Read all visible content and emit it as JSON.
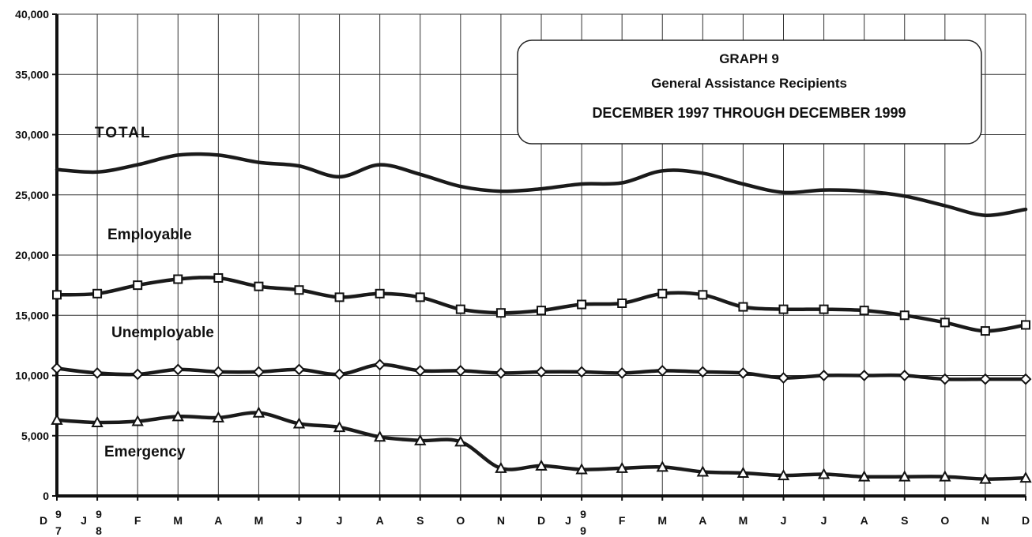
{
  "chart_data": {
    "type": "line",
    "title_lines": [
      "GRAPH 9",
      "General Assistance Recipients",
      "DECEMBER 1997 THROUGH DECEMBER 1999"
    ],
    "xlabel": "",
    "ylabel": "",
    "ylim": [
      0,
      40000
    ],
    "y_ticks": [
      "0",
      "5,000",
      "10,000",
      "15,000",
      "20,000",
      "25,000",
      "30,000",
      "35,000",
      "40,000"
    ],
    "y_tick_values": [
      0,
      5000,
      10000,
      15000,
      20000,
      25000,
      30000,
      35000,
      40000
    ],
    "grid": true,
    "x": [
      "D97",
      "J98",
      "F",
      "M",
      "A",
      "M",
      "J",
      "J",
      "A",
      "S",
      "O",
      "N",
      "D",
      "J99",
      "F",
      "M",
      "A",
      "M",
      "J",
      "J",
      "A",
      "S",
      "O",
      "N",
      "D"
    ],
    "x_tick_labels": [
      {
        "main": "D",
        "year": [
          "9",
          "7"
        ]
      },
      {
        "main": "J",
        "year": [
          "9",
          "8"
        ]
      },
      {
        "main": "F"
      },
      {
        "main": "M"
      },
      {
        "main": "A"
      },
      {
        "main": "M"
      },
      {
        "main": "J"
      },
      {
        "main": "J"
      },
      {
        "main": "A"
      },
      {
        "main": "S"
      },
      {
        "main": "O"
      },
      {
        "main": "N"
      },
      {
        "main": "D"
      },
      {
        "main": "J",
        "year": [
          "9",
          "9"
        ]
      },
      {
        "main": "F"
      },
      {
        "main": "M"
      },
      {
        "main": "A"
      },
      {
        "main": "M"
      },
      {
        "main": "J"
      },
      {
        "main": "J"
      },
      {
        "main": "A"
      },
      {
        "main": "S"
      },
      {
        "main": "O"
      },
      {
        "main": "N"
      },
      {
        "main": "D"
      }
    ],
    "series": [
      {
        "name": "TOTAL",
        "marker": "none",
        "values": [
          27100,
          26900,
          27500,
          28300,
          28300,
          27700,
          27400,
          26500,
          27500,
          26700,
          25700,
          25300,
          25500,
          25900,
          26000,
          27000,
          26800,
          25900,
          25200,
          25400,
          25300,
          24900,
          24100,
          23300,
          23800
        ]
      },
      {
        "name": "Employable",
        "marker": "square",
        "values": [
          16700,
          16800,
          17500,
          18000,
          18100,
          17400,
          17100,
          16500,
          16800,
          16500,
          15500,
          15200,
          15400,
          15900,
          16000,
          16800,
          16700,
          15700,
          15500,
          15500,
          15400,
          15000,
          14400,
          13700,
          14200
        ]
      },
      {
        "name": "Unemployable",
        "marker": "diamond",
        "values": [
          10600,
          10200,
          10100,
          10500,
          10300,
          10300,
          10500,
          10100,
          10900,
          10400,
          10400,
          10200,
          10300,
          10300,
          10200,
          10400,
          10300,
          10200,
          9800,
          10000,
          10000,
          10000,
          9700,
          9700,
          9700
        ]
      },
      {
        "name": "Emergency",
        "marker": "triangle",
        "values": [
          6300,
          6100,
          6200,
          6600,
          6500,
          6900,
          6000,
          5700,
          4900,
          4600,
          4500,
          2300,
          2500,
          2200,
          2300,
          2400,
          2000,
          1900,
          1700,
          1800,
          1600,
          1600,
          1600,
          1400,
          1500
        ]
      }
    ],
    "legend": "inline labels"
  }
}
